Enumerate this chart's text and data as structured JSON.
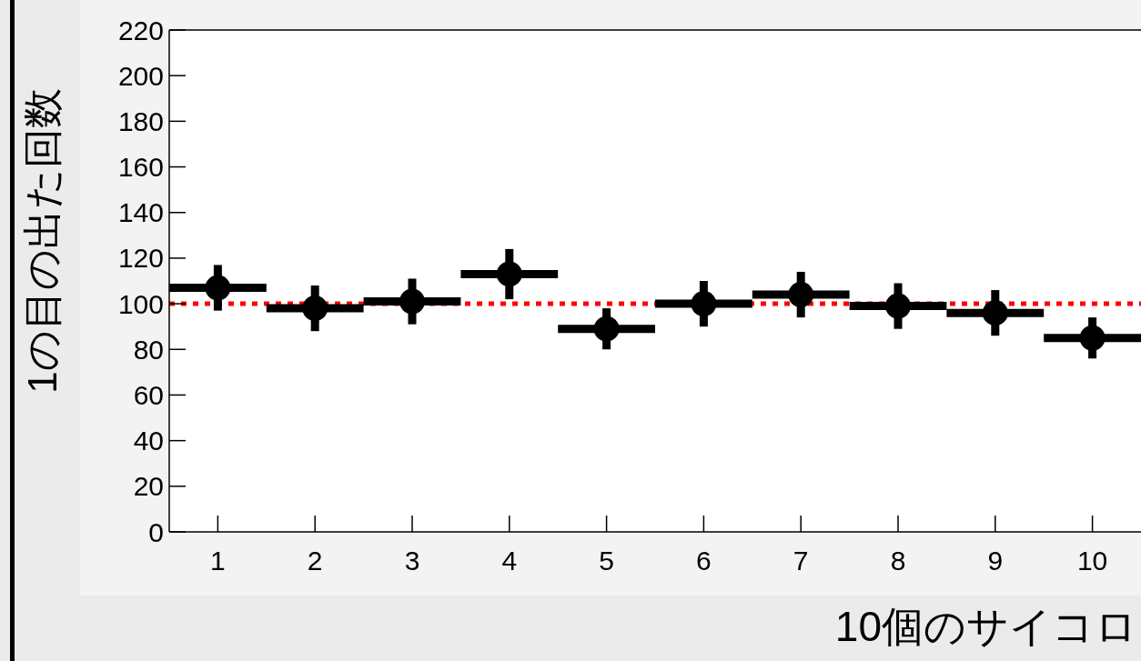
{
  "chart_data": {
    "type": "scatter",
    "xlabel": "10個のサイコロ",
    "ylabel": "1の目の出た回数",
    "x": [
      1,
      2,
      3,
      4,
      5,
      6,
      7,
      8,
      9,
      10
    ],
    "series": [
      {
        "color": "#000000",
        "values": [
          107,
          98,
          101,
          113,
          89,
          100,
          104,
          99,
          96,
          85
        ],
        "errors": [
          10,
          10,
          10,
          11,
          9,
          10,
          10,
          10,
          10,
          9
        ],
        "xerrors": [
          0.5,
          0.5,
          0.5,
          0.5,
          0.5,
          0.5,
          0.5,
          0.5,
          0.5,
          0.5
        ]
      }
    ],
    "xlim": [
      0.5,
      10.5
    ],
    "xticks": [
      1,
      2,
      3,
      4,
      5,
      6,
      7,
      8,
      9,
      10
    ],
    "ylim": [
      0,
      220
    ],
    "yticks": [
      0,
      20,
      40,
      60,
      80,
      100,
      120,
      140,
      160,
      180,
      200,
      220
    ],
    "ref_lines": [
      {
        "axis": "y",
        "value": 100,
        "color": "#ff0000",
        "line_style": "dotted"
      }
    ],
    "marker": "circle",
    "grid": false
  }
}
